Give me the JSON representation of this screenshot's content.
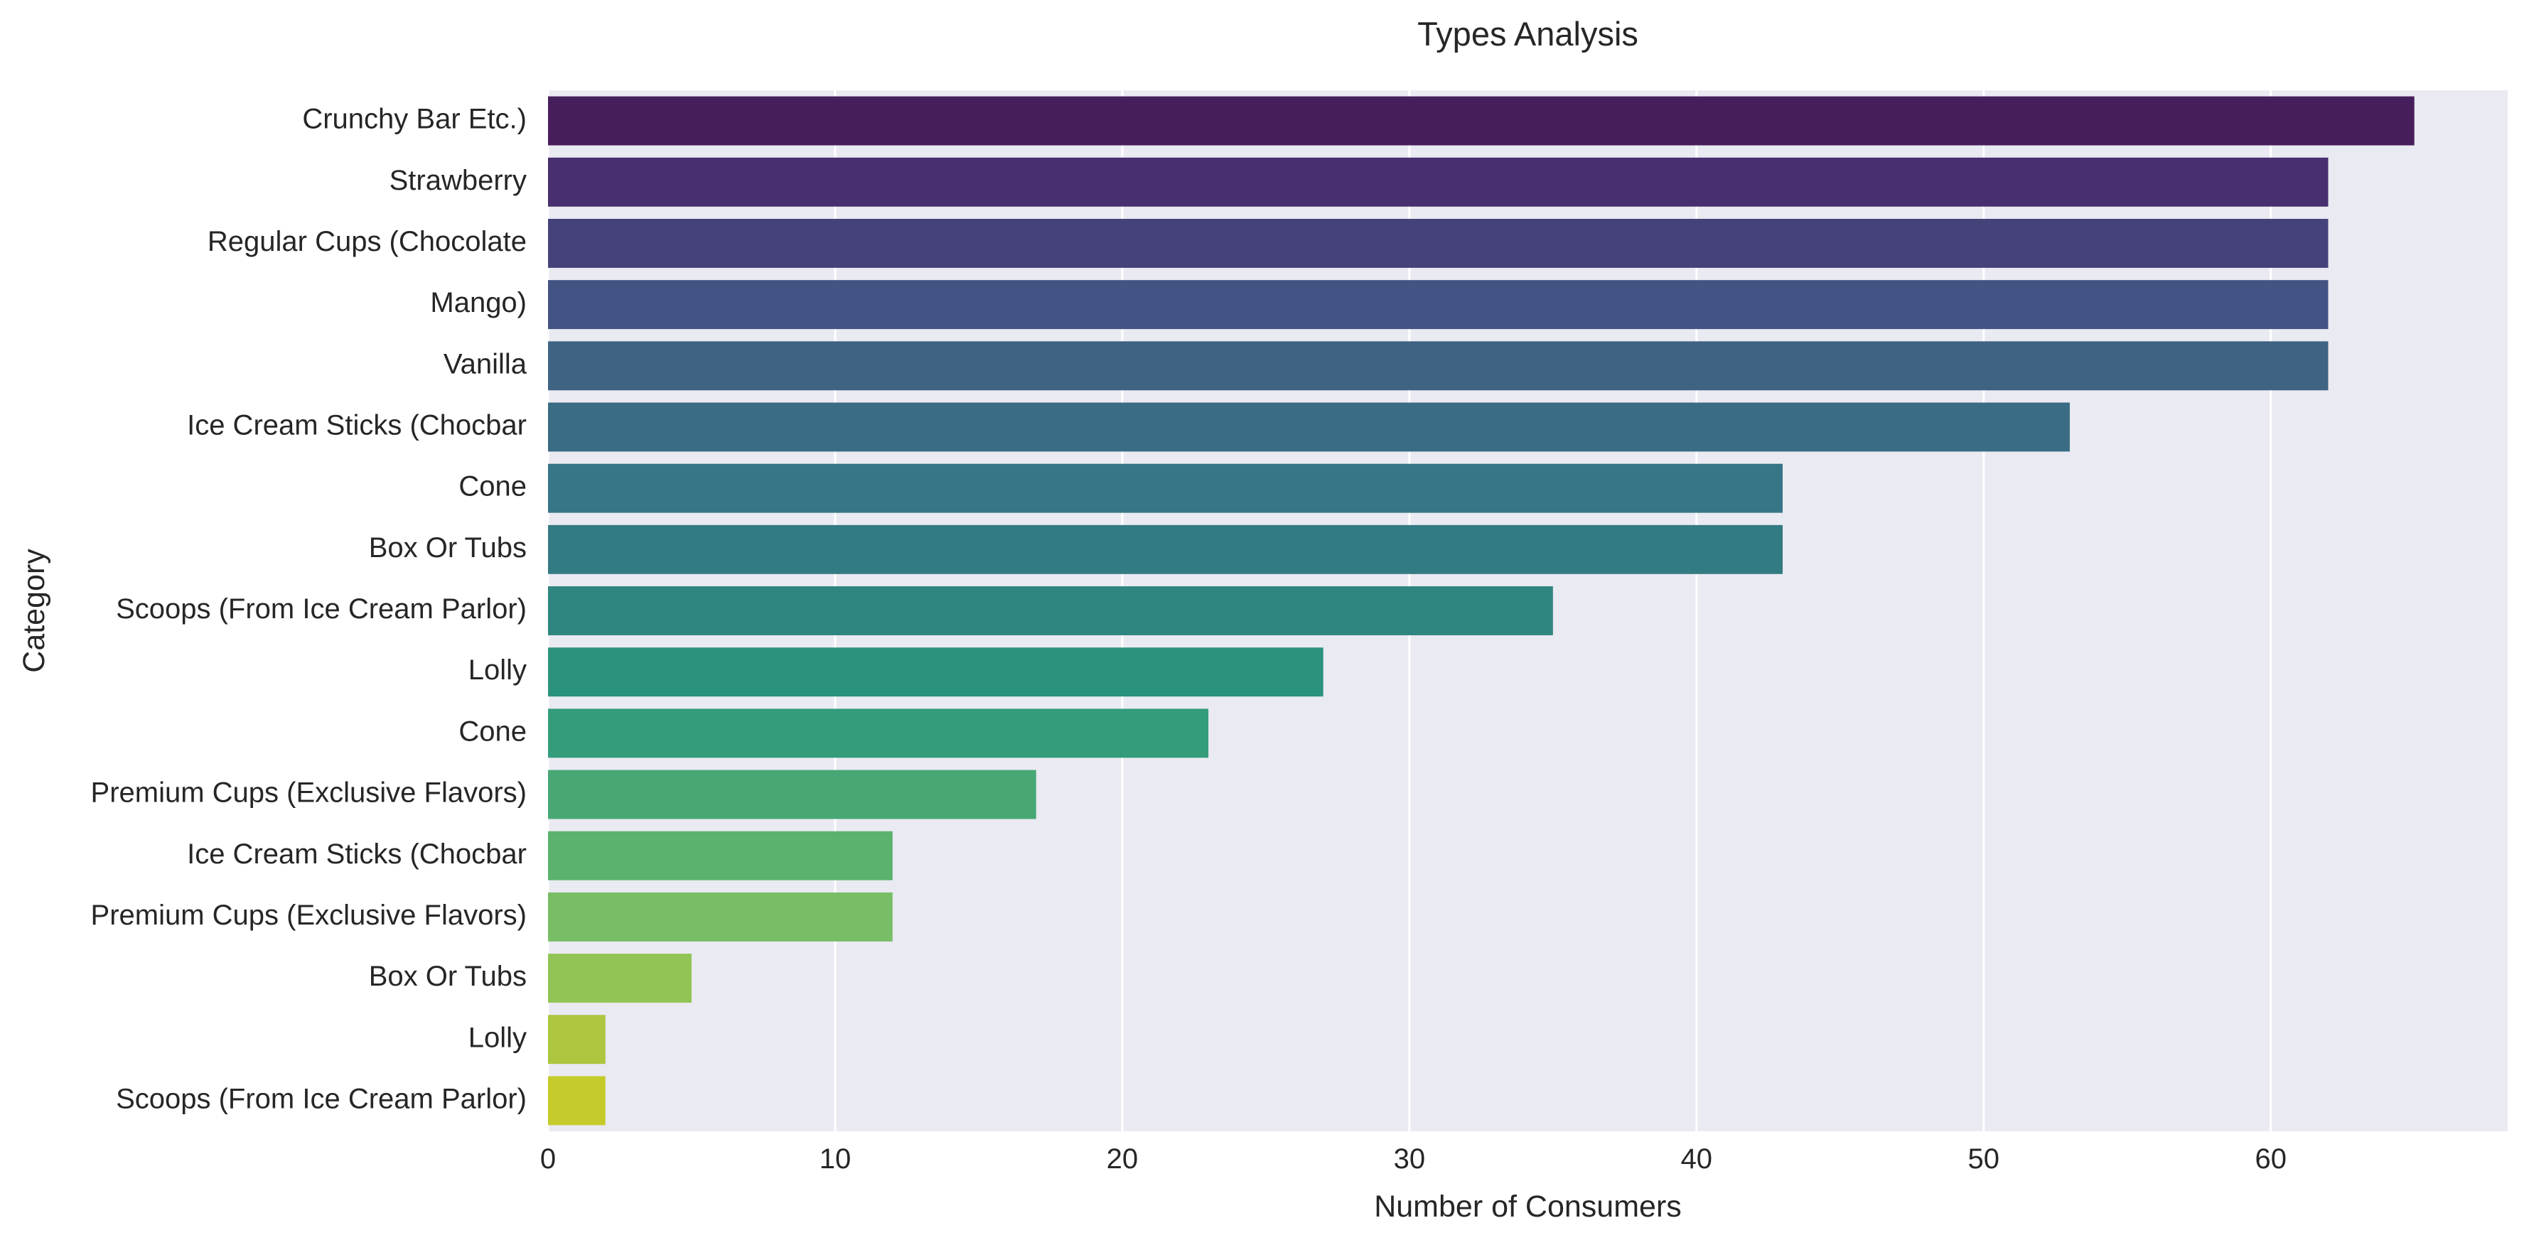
{
  "chart_data": {
    "type": "bar",
    "orientation": "horizontal",
    "title": "Types Analysis",
    "xlabel": "Number of Consumers",
    "ylabel": "Category",
    "xlim": [
      0,
      68.25
    ],
    "xticks": [
      0,
      10,
      20,
      30,
      40,
      50,
      60
    ],
    "grid": true,
    "legend": "none",
    "categories": [
      "Crunchy Bar Etc.)",
      "Strawberry",
      "Regular Cups (Chocolate",
      "Mango)",
      "Vanilla",
      "Ice Cream Sticks (Chocbar",
      "Cone",
      "Box Or Tubs",
      "Scoops (From Ice Cream Parlor)",
      "Lolly",
      "Cone",
      "Premium Cups (Exclusive Flavors)",
      "Ice Cream Sticks (Chocbar",
      "Premium Cups (Exclusive Flavors)",
      "Box Or Tubs",
      "Lolly",
      "Scoops (From Ice Cream Parlor)"
    ],
    "values": [
      65,
      62,
      62,
      62,
      62,
      53,
      43,
      43,
      35,
      27,
      23,
      17,
      12,
      12,
      5,
      2,
      2
    ],
    "colors": [
      "#471e5c",
      "#482f6f",
      "#45427a",
      "#435383",
      "#3f6383",
      "#3a6c84",
      "#367686",
      "#337b82",
      "#2f8580",
      "#2b927d",
      "#339c7b",
      "#48a774",
      "#5bb26f",
      "#78be66",
      "#91c454",
      "#acc63f",
      "#c6cb2c"
    ],
    "background_color": "#eaeaf2",
    "grid_color": "#ffffff"
  }
}
